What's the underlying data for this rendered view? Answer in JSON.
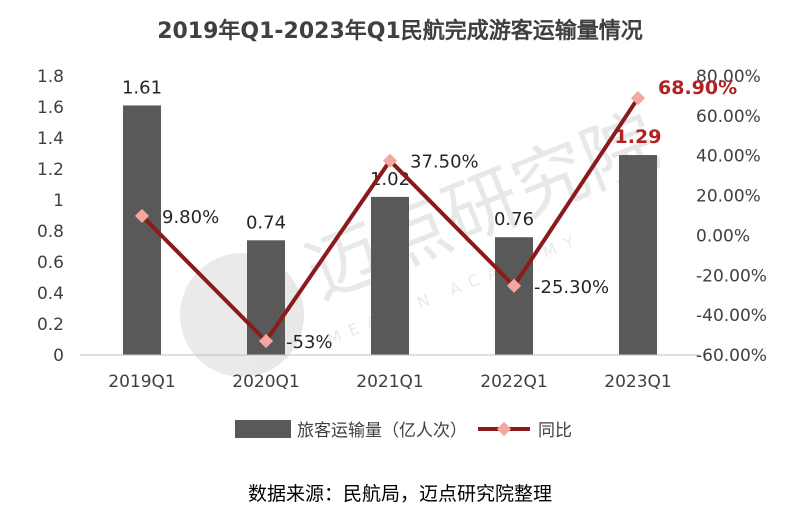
{
  "chart_data": {
    "type": "bar",
    "title": "2019年Q1-2023年Q1民航完成游客运输量情况",
    "categories": [
      "2019Q1",
      "2020Q1",
      "2021Q1",
      "2022Q1",
      "2023Q1"
    ],
    "series": [
      {
        "name": "旅客运输量（亿人次）",
        "type": "bar",
        "axis": "left",
        "values": [
          1.61,
          0.74,
          1.02,
          0.76,
          1.29
        ],
        "labels": [
          "1.61",
          "0.74",
          "1.02",
          "0.76",
          "1.29"
        ],
        "color": "#595959"
      },
      {
        "name": "同比",
        "type": "line",
        "axis": "right",
        "values": [
          9.8,
          -53,
          37.5,
          -25.3,
          68.9
        ],
        "labels": [
          "9.80%",
          "-53%",
          "37.50%",
          "-25.30%",
          "68.90%"
        ],
        "color": "#8b1a1a",
        "marker_color": "#f4a6a0"
      }
    ],
    "y_left": {
      "min": 0,
      "max": 1.8,
      "ticks": [
        0,
        0.2,
        0.4,
        0.6,
        0.8,
        1,
        1.2,
        1.4,
        1.6,
        1.8
      ],
      "tick_labels": [
        "0",
        "0.2",
        "0.4",
        "0.6",
        "0.8",
        "1",
        "1.2",
        "1.4",
        "1.6",
        "1.8"
      ]
    },
    "y_right": {
      "min": -60,
      "max": 80,
      "ticks": [
        -60,
        -40,
        -20,
        0,
        20,
        40,
        60,
        80
      ],
      "tick_labels": [
        "-60.00%",
        "-40.00%",
        "-20.00%",
        "0.00%",
        "20.00%",
        "40.00%",
        "60.00%",
        "80.00%"
      ]
    },
    "highlight_index": 4,
    "highlight_color": "#b22222",
    "grid": false,
    "legend_position": "bottom"
  },
  "watermark": {
    "text": "迈点研究院",
    "subtext": "MEADIN ACADEMY"
  },
  "source": "数据来源：民航局，迈点研究院整理"
}
